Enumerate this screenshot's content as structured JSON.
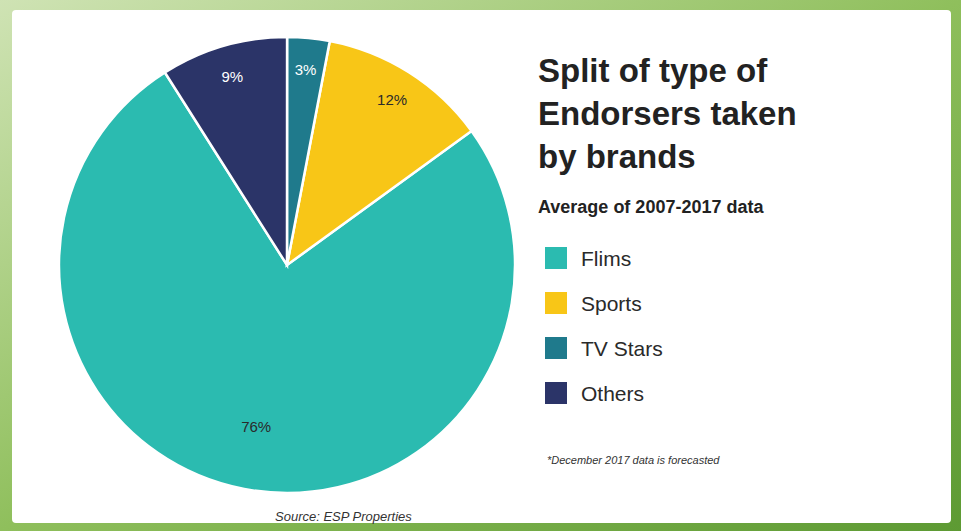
{
  "chart_data": {
    "type": "pie",
    "title": "Split of type of Endorsers taken by brands",
    "subtitle": "Average of 2007-2017 data",
    "categories": [
      "Flims",
      "Sports",
      "TV Stars",
      "Others"
    ],
    "values": [
      76,
      12,
      3,
      9
    ],
    "value_labels": [
      "76%",
      "12%",
      "3%",
      "9%"
    ],
    "colors": [
      "#2bbbb0",
      "#f8c617",
      "#1f7a8c",
      "#2b3468"
    ],
    "data_labels": true,
    "legend": "right",
    "footnote": "*December 2017 data is forecasted",
    "source": "Source: ESP Properties"
  }
}
